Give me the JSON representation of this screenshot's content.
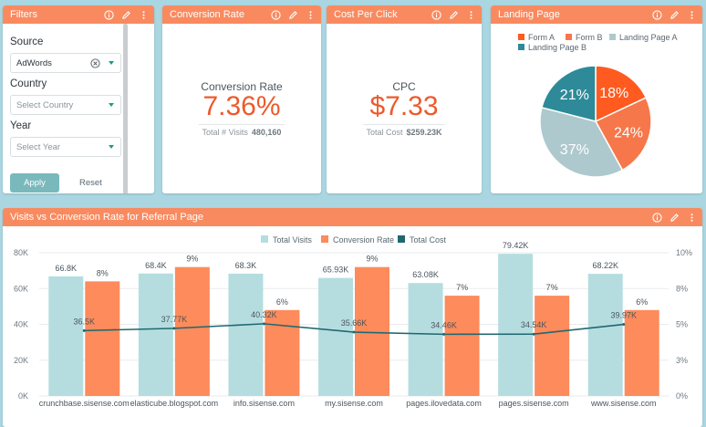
{
  "filters": {
    "title": "Filters",
    "source_label": "Source",
    "source_value": "AdWords",
    "country_label": "Country",
    "country_placeholder": "Select Country",
    "year_label": "Year",
    "year_placeholder": "Select Year",
    "apply_label": "Apply",
    "reset_label": "Reset"
  },
  "conversion": {
    "header": "Conversion Rate",
    "title": "Conversion Rate",
    "value": "7.36%",
    "sub_label": "Total # Visits",
    "sub_value": "480,160"
  },
  "cpc": {
    "header": "Cost Per Click",
    "title": "CPC",
    "value": "$7.33",
    "sub_label": "Total Cost",
    "sub_value": "$259.23K"
  },
  "landing": {
    "header": "Landing Page",
    "chart_data": {
      "type": "pie",
      "slices": [
        {
          "name": "Form A",
          "value": 18,
          "label": "18%",
          "color": "#ff5a1f"
        },
        {
          "name": "Form B",
          "value": 24,
          "label": "24%",
          "color": "#f6774a"
        },
        {
          "name": "Landing Page A",
          "value": 37,
          "label": "37%",
          "color": "#aec9cd"
        },
        {
          "name": "Landing Page B",
          "value": 21,
          "label": "21%",
          "color": "#2e8a98"
        }
      ]
    }
  },
  "visits": {
    "header": "Visits vs Conversion Rate for Referral Page",
    "chart_data": {
      "type": "bar",
      "categories": [
        "crunchbase.sisense.com",
        "elasticube.blogspot.com",
        "info.sisense.com",
        "my.sisense.com",
        "pages.ilovedata.com",
        "pages.sisense.com",
        "www.sisense.com"
      ],
      "series": [
        {
          "name": "Total Visits",
          "type": "bar",
          "axis": "left",
          "color": "#b5dde0",
          "values": [
            66.8,
            68.4,
            68.3,
            65.93,
            63.08,
            79.42,
            68.22
          ],
          "labels": [
            "66.8K",
            "68.4K",
            "68.3K",
            "65.93K",
            "63.08K",
            "79.42K",
            "68.22K"
          ]
        },
        {
          "name": "Conversion Rate",
          "type": "bar",
          "axis": "right",
          "color": "#fd8b5b",
          "values": [
            8,
            9,
            6,
            9,
            7,
            7,
            6
          ],
          "labels": [
            "8%",
            "9%",
            "6%",
            "9%",
            "7%",
            "7%",
            "6%"
          ]
        },
        {
          "name": "Total Cost",
          "type": "line",
          "axis": "left",
          "color": "#1f6870",
          "values": [
            36.5,
            37.77,
            40.32,
            35.66,
            34.46,
            34.54,
            39.97
          ],
          "labels": [
            "36.5K",
            "37.77K",
            "40.32K",
            "35.66K",
            "34.46K",
            "34.54K",
            "39.97K"
          ]
        }
      ],
      "ylim_left": [
        0,
        80
      ],
      "yticks_left": [
        "0K",
        "20K",
        "40K",
        "60K",
        "80K"
      ],
      "ylim_right": [
        0,
        10
      ],
      "yticks_right": [
        "0%",
        "3%",
        "5%",
        "8%",
        "10%"
      ],
      "legend_position": "top-center",
      "grid": true
    }
  }
}
